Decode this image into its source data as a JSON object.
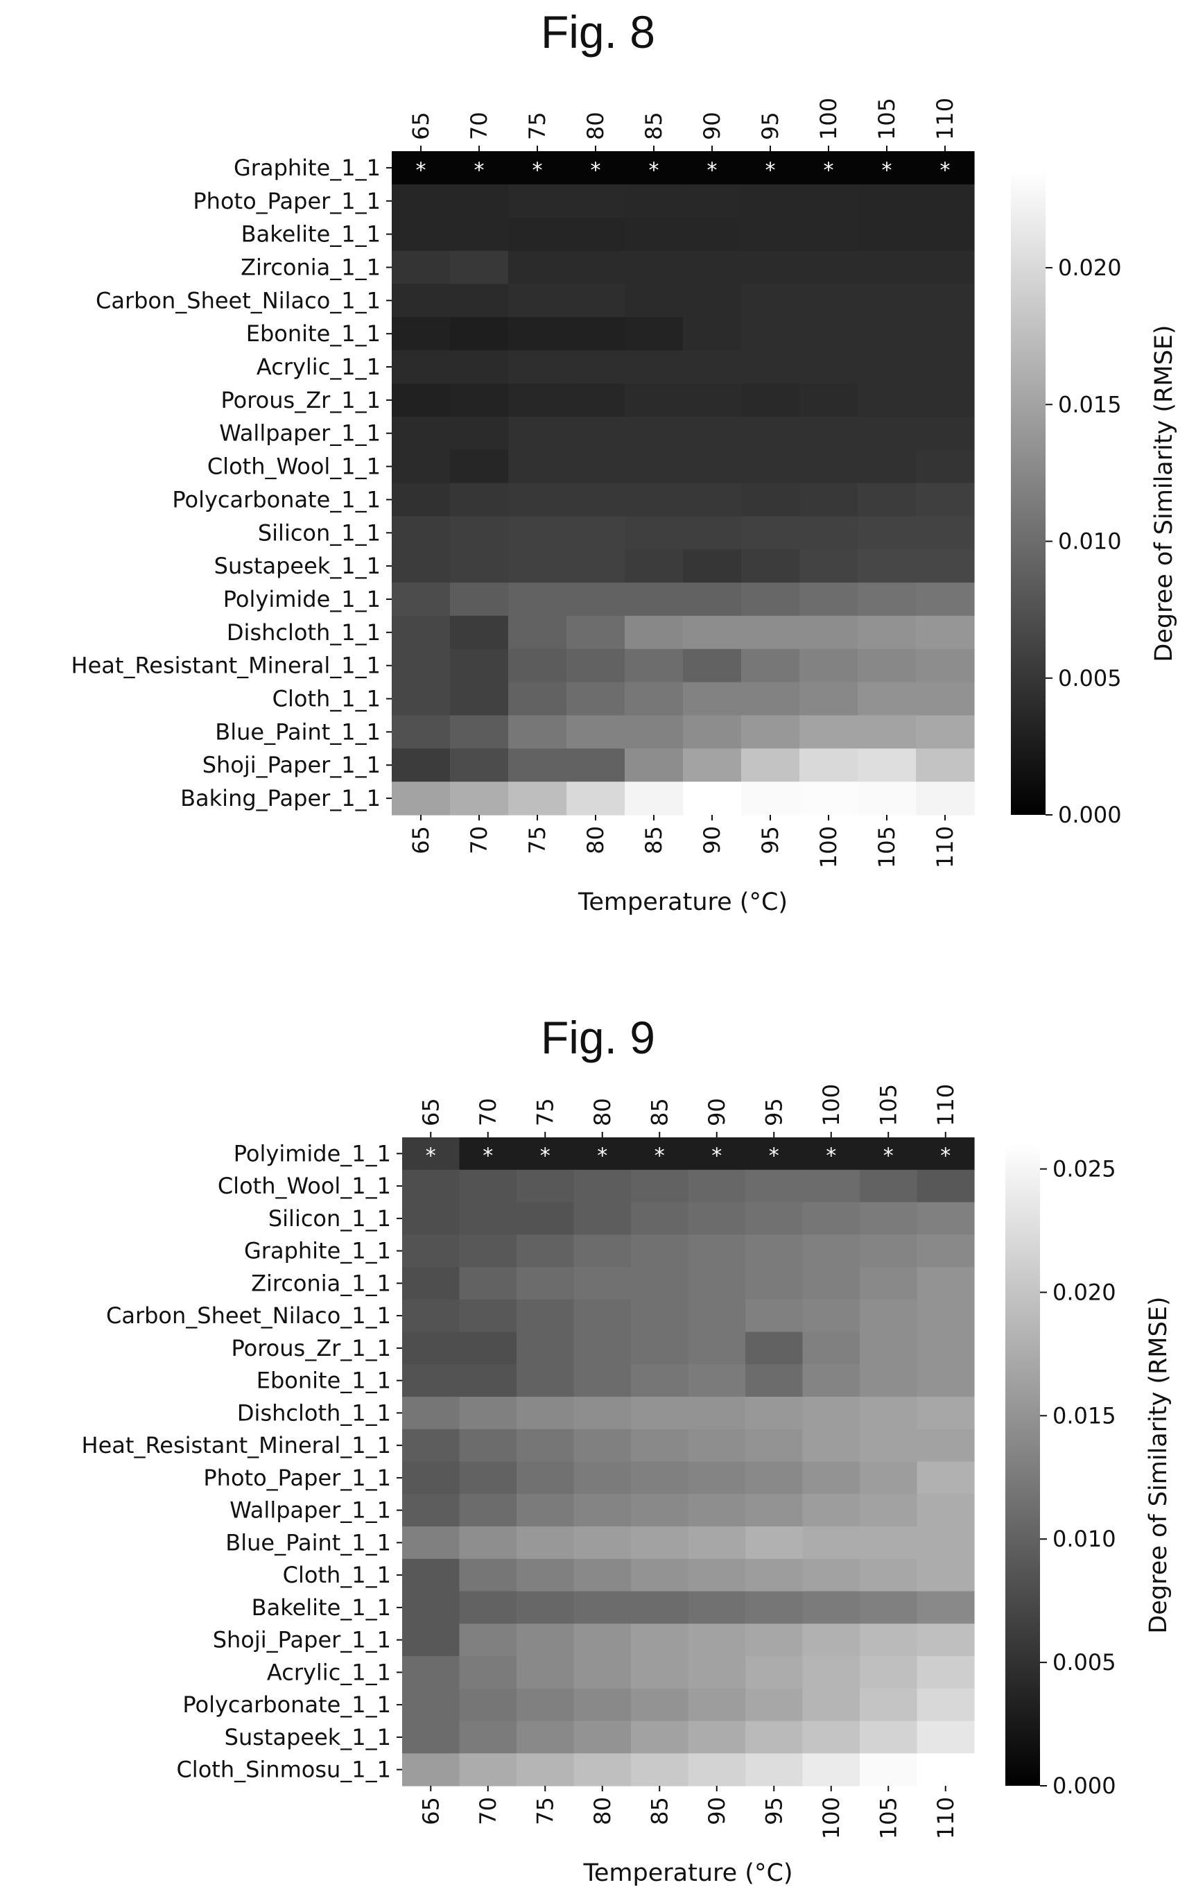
{
  "figures": [
    {
      "title": "Fig. 8"
    },
    {
      "title": "Fig. 9"
    }
  ],
  "chart_data": [
    {
      "type": "heatmap",
      "title": "Fig. 8",
      "xlabel": "Temperature (°C)",
      "colorbar_label": "Degree of Similarity (RMSE)",
      "colorbar_ticks": [
        "0.000",
        "0.005",
        "0.010",
        "0.015",
        "0.020"
      ],
      "colorbar_range": [
        0.0,
        0.0235
      ],
      "colormap": "gray",
      "x": [
        "65",
        "70",
        "75",
        "80",
        "85",
        "90",
        "95",
        "100",
        "105",
        "110"
      ],
      "rows": [
        "Graphite_1_1",
        "Photo_Paper_1_1",
        "Bakelite_1_1",
        "Zirconia_1_1",
        "Carbon_Sheet_Nilaco_1_1",
        "Ebonite_1_1",
        "Acrylic_1_1",
        "Porous_Zr_1_1",
        "Wallpaper_1_1",
        "Cloth_Wool_1_1",
        "Polycarbonate_1_1",
        "Silicon_1_1",
        "Sustapeek_1_1",
        "Polyimide_1_1",
        "Dishcloth_1_1",
        "Heat_Resistant_Mineral_1_1",
        "Cloth_1_1",
        "Blue_Paint_1_1",
        "Shoji_Paper_1_1",
        "Baking_Paper_1_1"
      ],
      "marker": "*",
      "marked_row": 0,
      "values": [
        [
          0.0005,
          0.0005,
          0.0005,
          0.0005,
          0.0005,
          0.0005,
          0.0005,
          0.0005,
          0.0005,
          0.0005
        ],
        [
          0.0035,
          0.0035,
          0.0038,
          0.0038,
          0.0037,
          0.0037,
          0.0036,
          0.0036,
          0.0035,
          0.0035
        ],
        [
          0.0035,
          0.0035,
          0.0034,
          0.0034,
          0.0035,
          0.0035,
          0.0036,
          0.0036,
          0.0035,
          0.0035
        ],
        [
          0.0048,
          0.0052,
          0.004,
          0.004,
          0.004,
          0.004,
          0.004,
          0.004,
          0.004,
          0.004
        ],
        [
          0.004,
          0.004,
          0.0042,
          0.0042,
          0.004,
          0.004,
          0.0042,
          0.0042,
          0.0042,
          0.0042
        ],
        [
          0.003,
          0.0028,
          0.003,
          0.003,
          0.0032,
          0.004,
          0.0042,
          0.0042,
          0.0042,
          0.0042
        ],
        [
          0.004,
          0.004,
          0.0042,
          0.0042,
          0.0042,
          0.0042,
          0.0042,
          0.0042,
          0.0042,
          0.0042
        ],
        [
          0.003,
          0.0032,
          0.0036,
          0.0036,
          0.004,
          0.004,
          0.0038,
          0.004,
          0.0042,
          0.0042
        ],
        [
          0.004,
          0.004,
          0.0045,
          0.0045,
          0.0045,
          0.0045,
          0.0045,
          0.0045,
          0.0045,
          0.0045
        ],
        [
          0.004,
          0.0035,
          0.0045,
          0.0045,
          0.0045,
          0.0045,
          0.0045,
          0.0045,
          0.0045,
          0.0048
        ],
        [
          0.0045,
          0.005,
          0.0052,
          0.0052,
          0.0052,
          0.0052,
          0.005,
          0.0052,
          0.0055,
          0.0058
        ],
        [
          0.0055,
          0.0058,
          0.006,
          0.006,
          0.0058,
          0.0058,
          0.006,
          0.006,
          0.0062,
          0.0062
        ],
        [
          0.0055,
          0.0058,
          0.006,
          0.006,
          0.0055,
          0.005,
          0.0055,
          0.0062,
          0.0065,
          0.0065
        ],
        [
          0.007,
          0.0085,
          0.009,
          0.009,
          0.009,
          0.009,
          0.0095,
          0.01,
          0.0105,
          0.0108
        ],
        [
          0.0065,
          0.0055,
          0.009,
          0.01,
          0.0125,
          0.013,
          0.013,
          0.013,
          0.0135,
          0.0138
        ],
        [
          0.0065,
          0.006,
          0.0085,
          0.009,
          0.01,
          0.009,
          0.011,
          0.012,
          0.0125,
          0.013
        ],
        [
          0.0065,
          0.006,
          0.009,
          0.01,
          0.011,
          0.012,
          0.012,
          0.0125,
          0.0135,
          0.0135
        ],
        [
          0.0075,
          0.0085,
          0.011,
          0.012,
          0.012,
          0.013,
          0.014,
          0.015,
          0.015,
          0.0155
        ],
        [
          0.0055,
          0.007,
          0.009,
          0.009,
          0.013,
          0.015,
          0.018,
          0.02,
          0.0205,
          0.018
        ],
        [
          0.015,
          0.016,
          0.0175,
          0.02,
          0.0225,
          0.0235,
          0.023,
          0.0232,
          0.023,
          0.0225
        ]
      ]
    },
    {
      "type": "heatmap",
      "title": "Fig. 9",
      "xlabel": "Temperature (°C)",
      "colorbar_label": "Degree of Similarity (RMSE)",
      "colorbar_ticks": [
        "0.000",
        "0.005",
        "0.010",
        "0.015",
        "0.020",
        "0.025"
      ],
      "colorbar_range": [
        0.0,
        0.026
      ],
      "colormap": "gray",
      "x": [
        "65",
        "70",
        "75",
        "80",
        "85",
        "90",
        "95",
        "100",
        "105",
        "110"
      ],
      "rows": [
        "Polyimide_1_1",
        "Cloth_Wool_1_1",
        "Silicon_1_1",
        "Graphite_1_1",
        "Zirconia_1_1",
        "Carbon_Sheet_Nilaco_1_1",
        "Porous_Zr_1_1",
        "Ebonite_1_1",
        "Dishcloth_1_1",
        "Heat_Resistant_Mineral_1_1",
        "Photo_Paper_1_1",
        "Wallpaper_1_1",
        "Blue_Paint_1_1",
        "Cloth_1_1",
        "Bakelite_1_1",
        "Shoji_Paper_1_1",
        "Acrylic_1_1",
        "Polycarbonate_1_1",
        "Sustapeek_1_1",
        "Cloth_Sinmosu_1_1"
      ],
      "marker": "*",
      "marked_row": 0,
      "values": [
        [
          0.006,
          0.003,
          0.003,
          0.003,
          0.003,
          0.003,
          0.003,
          0.003,
          0.003,
          0.003
        ],
        [
          0.008,
          0.0085,
          0.009,
          0.0095,
          0.01,
          0.0105,
          0.011,
          0.011,
          0.01,
          0.009
        ],
        [
          0.008,
          0.0085,
          0.0085,
          0.0095,
          0.0105,
          0.011,
          0.0115,
          0.012,
          0.0125,
          0.013
        ],
        [
          0.0085,
          0.009,
          0.01,
          0.011,
          0.0115,
          0.012,
          0.0125,
          0.013,
          0.0135,
          0.014
        ],
        [
          0.008,
          0.01,
          0.011,
          0.0115,
          0.0115,
          0.012,
          0.0125,
          0.013,
          0.014,
          0.015
        ],
        [
          0.0085,
          0.009,
          0.01,
          0.011,
          0.0115,
          0.012,
          0.013,
          0.0135,
          0.0145,
          0.015
        ],
        [
          0.008,
          0.008,
          0.01,
          0.011,
          0.0115,
          0.012,
          0.01,
          0.013,
          0.0145,
          0.015
        ],
        [
          0.0085,
          0.0085,
          0.01,
          0.011,
          0.012,
          0.0125,
          0.011,
          0.0135,
          0.0145,
          0.015
        ],
        [
          0.012,
          0.013,
          0.014,
          0.0145,
          0.015,
          0.015,
          0.0155,
          0.016,
          0.0165,
          0.017
        ],
        [
          0.0095,
          0.011,
          0.012,
          0.013,
          0.014,
          0.0145,
          0.015,
          0.016,
          0.0165,
          0.0165
        ],
        [
          0.009,
          0.01,
          0.0115,
          0.0125,
          0.013,
          0.0135,
          0.014,
          0.015,
          0.016,
          0.018
        ],
        [
          0.0095,
          0.011,
          0.0125,
          0.0135,
          0.014,
          0.0145,
          0.015,
          0.016,
          0.0165,
          0.0175
        ],
        [
          0.013,
          0.0145,
          0.0155,
          0.016,
          0.0165,
          0.017,
          0.018,
          0.0175,
          0.0175,
          0.0175
        ],
        [
          0.009,
          0.012,
          0.013,
          0.014,
          0.015,
          0.0155,
          0.016,
          0.0165,
          0.017,
          0.0175
        ],
        [
          0.009,
          0.01,
          0.0105,
          0.011,
          0.011,
          0.0115,
          0.012,
          0.0125,
          0.013,
          0.014
        ],
        [
          0.009,
          0.013,
          0.014,
          0.015,
          0.016,
          0.0165,
          0.017,
          0.018,
          0.019,
          0.0195
        ],
        [
          0.011,
          0.0125,
          0.014,
          0.015,
          0.016,
          0.0165,
          0.0175,
          0.0185,
          0.0195,
          0.021
        ],
        [
          0.011,
          0.012,
          0.013,
          0.014,
          0.015,
          0.016,
          0.017,
          0.0185,
          0.02,
          0.022
        ],
        [
          0.011,
          0.0125,
          0.014,
          0.015,
          0.0165,
          0.0175,
          0.019,
          0.02,
          0.0215,
          0.0235
        ],
        [
          0.016,
          0.0175,
          0.0185,
          0.0195,
          0.0205,
          0.0215,
          0.0225,
          0.024,
          0.0255,
          0.026
        ]
      ]
    }
  ]
}
